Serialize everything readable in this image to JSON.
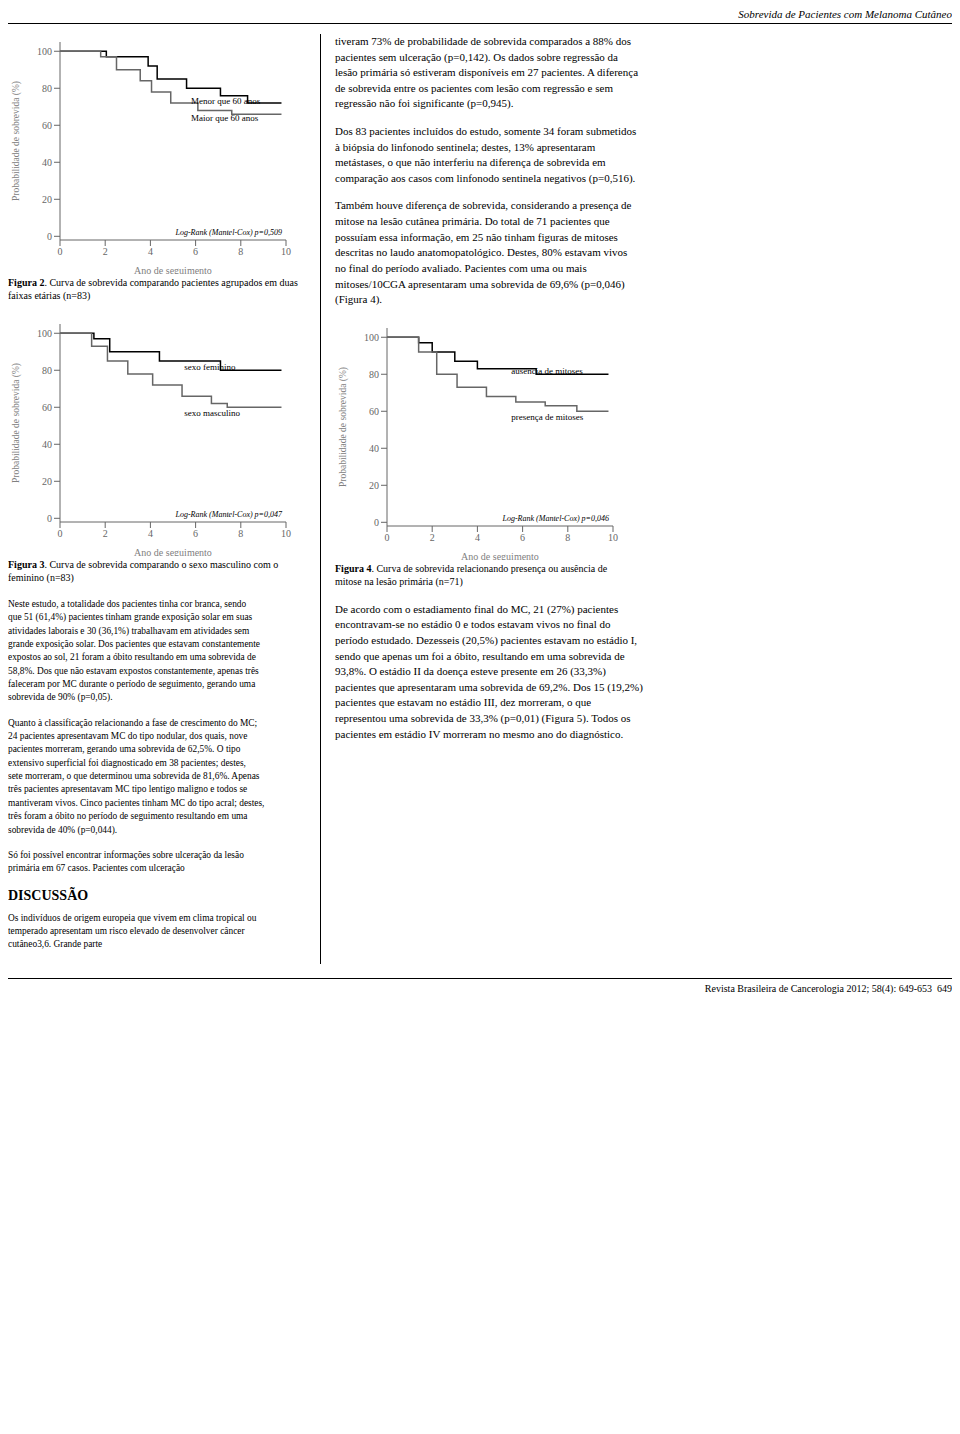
{
  "header": "Sobrevida de Pacientes com Melanoma Cutâneo",
  "footer": "Revista Brasileira de Cancerologia 2012; 58(4): 649-653  649",
  "left_column": [
    {
      "text": "Neste estudo, a totalidade dos pacientes tinha cor branca, sendo\nque 51 (61,4%) pacientes tinham grande exposição solar em suas\natividades laborais e 30 (36,1%) trabalhavam em atividades sem\ngrande exposição solar. Dos pacientes que estavam constantemente\nexpostos ao sol, 21 foram a óbito resultando em uma sobrevida de\n58,8%. Dos que não estavam expostos constantemente, apenas três\nfaleceram por MC durante o período de seguimento, gerando uma\nsobrevida de 90% (p=0,05)."
    },
    {
      "text": "Quanto à classificação relacionando a fase de crescimento do MC;\n24 pacientes apresentavam MC do tipo nodular, dos quais, nove\npacientes morreram, gerando uma sobrevida de 62,5%. O tipo\nextensivo superficial foi diagnosticado em 38 pacientes; destes,\nsete morreram, o que determinou uma sobrevida de 81,6%. Apenas\ntrês pacientes apresentavam MC tipo lentigo maligno e todos se\nmantiveram vivos. Cinco pacientes tinham MC do tipo acral; destes,\ntrês foram a óbito no período de seguimento resultando em uma\nsobrevida de 40% (p=0,044)."
    },
    {
      "text": "Só foi possível encontrar informações sobre ulceração da lesão\nprimária em 67 casos. Pacientes com ulceração"
    },
    {
      "heading": "DISCUSSÃO"
    },
    {
      "text": "Os indivíduos de origem europeia que vivem em clima tropical ou\ntemperado apresentam um risco elevado de desenvolver câncer\ncutâneo3,6. Grande parte"
    }
  ],
  "right_column": [
    {
      "text": "tiveram 73% de probabilidade de sobrevida comparados a 88% dos\npacientes sem ulceração (p=0,142). Os dados sobre regressão da\nlesão primária só estiveram disponíveis em 27 pacientes. A diferença\nde sobrevida entre os pacientes com lesão com regressão e sem\nregressão não foi significante (p=0,945)."
    },
    {
      "text": "Dos 83 pacientes incluídos do estudo, somente 34 foram submetidos\nà biópsia do linfonodo sentinela; destes, 13% apresentaram\nmetástases, o que não interferiu na diferença de sobrevida em\ncomparação aos casos com linfonodo sentinela negativos (p=0,516)."
    },
    {
      "text": "Também houve diferença de sobrevida, considerando a presença de\nmitose na lesão cutânea primária. Do total de 71 pacientes que\npossuíam essa informação, em 25 não tinham figuras de mitoses\ndescritas no laudo anatomopatológico. Destes, 80% estavam vivos\nno final do período avaliado. Pacientes com uma ou mais\nmitoses/10CGA apresentaram uma sobrevida de 69,6% (p=0,046)\n(Figura 4)."
    },
    {
      "chart": 2
    },
    {
      "text": "De acordo com o estadiamento final do MC, 21 (27%) pacientes\nencontravam-se no estádio 0 e todos estavam vivos no final do\nperíodo estudado. Dezesseis (20,5%) pacientes estavam no estádio I,\nsendo que apenas um foi a óbito, resultando em uma sobrevida de\n93,8%. O estádio II da doença esteve presente em 26 (33,3%)\npacientes que apresentaram uma sobrevida de 69,2%. Dos 15 (19,2%)\npacientes que estavam no estádio III, dez morreram, o que\nrepresentou uma sobrevida de 33,3% (p=0,01) (Figura 5). Todos os\npacientes em estádio IV morreram no mesmo ano do diagnóstico."
    }
  ],
  "chart_data": [
    {
      "type": "step",
      "title": "Figura 2",
      "subtitle": ". Curva de sobrevida comparando pacientes agrupados em duas faixas etárias (n=83)",
      "x_label": "Ano de seguimento",
      "y_label": "Probabilidade de sobrevida (%)",
      "xlim": [
        0,
        10
      ],
      "ylim": [
        -2,
        105
      ],
      "xticks": [
        0,
        2,
        4,
        6,
        8,
        10
      ],
      "yticks": [
        0,
        20,
        40,
        60,
        80,
        100
      ],
      "annotations": [
        {
          "text": "Log-Rank (Mantel-Cox) p=0,509"
        },
        {
          "text": "Menor que 60 anos",
          "x": 5.8,
          "y": 73
        },
        {
          "text": "Maior que 60 anos",
          "x": 5.8,
          "y": 64
        }
      ],
      "series": [
        {
          "name": "Menor que 60 anos",
          "color": "#000000",
          "x": [
            0,
            1.9,
            2.05,
            3.9,
            4.3,
            5.6,
            7.1,
            8.3,
            9.8
          ],
          "values": [
            100,
            100,
            97,
            92,
            85,
            80,
            76,
            72,
            72
          ]
        },
        {
          "name": "Maior que 60 anos",
          "color": "#666666",
          "x": [
            0,
            1.8,
            2.5,
            3.55,
            4.05,
            4.9,
            6.1,
            7.6,
            9.8
          ],
          "values": [
            100,
            97,
            90,
            84,
            78,
            72,
            68,
            66,
            66
          ]
        }
      ]
    },
    {
      "type": "step",
      "title": "Figura 3",
      "subtitle": ". Curva de sobrevida comparando o sexo masculino com o feminino (n=83)",
      "x_label": "Ano de seguimento",
      "y_label": "Probabilidade de sobrevida (%)",
      "xlim": [
        0,
        10
      ],
      "ylim": [
        -2,
        105
      ],
      "xticks": [
        0,
        2,
        4,
        6,
        8,
        10
      ],
      "yticks": [
        0,
        20,
        40,
        60,
        80,
        100
      ],
      "annotations": [
        {
          "text": "Log-Rank (Mantel-Cox) p=0,047"
        },
        {
          "text": "sexo feminino",
          "x": 5.5,
          "y": 82
        },
        {
          "text": "sexo masculino",
          "x": 5.5,
          "y": 57
        }
      ],
      "series": [
        {
          "name": "sexo feminino",
          "color": "#000000",
          "x": [
            0,
            1.5,
            2.2,
            4.4,
            5.7,
            7.1,
            9.8
          ],
          "values": [
            100,
            97,
            90,
            85,
            85,
            80,
            80
          ]
        },
        {
          "name": "sexo masculino",
          "color": "#666666",
          "x": [
            0,
            1.4,
            2.1,
            3.0,
            4.1,
            5.4,
            6.7,
            7.4,
            9.8
          ],
          "values": [
            100,
            93,
            85,
            78,
            72,
            66,
            62,
            60,
            60
          ]
        }
      ]
    },
    {
      "type": "step",
      "title": "Figura 4",
      "subtitle": ". Curva de sobrevida relacionando presença ou ausência de mitose na lesão primária (n=71)",
      "x_label": "Ano de seguimento",
      "y_label": "Probabilidade de sobrevida (%)",
      "xlim": [
        0,
        10
      ],
      "ylim": [
        -2,
        105
      ],
      "xticks": [
        0,
        2,
        4,
        6,
        8,
        10
      ],
      "yticks": [
        0,
        20,
        40,
        60,
        80,
        100
      ],
      "annotations": [
        {
          "text": "Log-Rank (Mantel-Cox) p=0,046"
        },
        {
          "text": "ausência de mitoses",
          "x": 5.5,
          "y": 82
        },
        {
          "text": "presença de mitoses",
          "x": 5.5,
          "y": 57
        }
      ],
      "series": [
        {
          "name": "ausência de mitoses",
          "color": "#000000",
          "x": [
            0,
            1.4,
            2.0,
            3.0,
            4.0,
            5.1,
            6.6,
            9.8
          ],
          "values": [
            100,
            97,
            92,
            87,
            83,
            83,
            80,
            80
          ]
        },
        {
          "name": "presença de mitoses",
          "color": "#666666",
          "x": [
            0,
            1.4,
            2.2,
            3.1,
            4.4,
            5.7,
            7.0,
            8.4,
            9.8
          ],
          "values": [
            100,
            92,
            80,
            73,
            68,
            65,
            63,
            60,
            60
          ]
        }
      ]
    }
  ]
}
